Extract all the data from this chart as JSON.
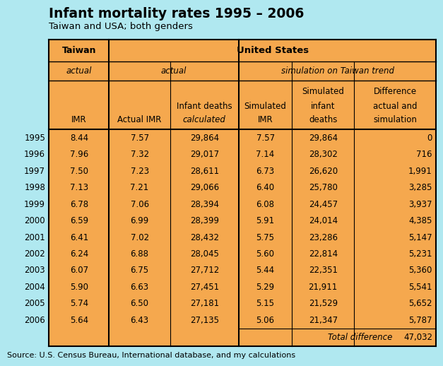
{
  "title": "Infant mortality rates 1995 – 2006",
  "subtitle": "Taiwan and USA; both genders",
  "source": "Source: U.S. Census Bureau, International database, and my calculations",
  "bg_color": "#b0e8f0",
  "table_bg": "#f5a84e",
  "years": [
    "1995",
    "1996",
    "1997",
    "1998",
    "1999",
    "2000",
    "2001",
    "2002",
    "2003",
    "2004",
    "2005",
    "2006"
  ],
  "taiwan_imr": [
    "8.44",
    "7.96",
    "7.50",
    "7.13",
    "6.78",
    "6.59",
    "6.41",
    "6.24",
    "6.07",
    "5.90",
    "5.74",
    "5.64"
  ],
  "us_actual_imr": [
    "7.57",
    "7.32",
    "7.23",
    "7.21",
    "7.06",
    "6.99",
    "7.02",
    "6.88",
    "6.75",
    "6.63",
    "6.50",
    "6.43"
  ],
  "us_infant_deaths": [
    "29,864",
    "29,017",
    "28,611",
    "29,066",
    "28,394",
    "28,399",
    "28,432",
    "28,045",
    "27,712",
    "27,451",
    "27,181",
    "27,135"
  ],
  "sim_imr": [
    "7.57",
    "7.14",
    "6.73",
    "6.40",
    "6.08",
    "5.91",
    "5.75",
    "5.60",
    "5.44",
    "5.29",
    "5.15",
    "5.06"
  ],
  "sim_infant_deaths": [
    "29,864",
    "28,302",
    "26,620",
    "25,780",
    "24,457",
    "24,014",
    "23,286",
    "22,814",
    "22,351",
    "21,911",
    "21,529",
    "21,347"
  ],
  "difference": [
    "0",
    "716",
    "1,991",
    "3,285",
    "3,937",
    "4,385",
    "5,147",
    "5,231",
    "5,360",
    "5,541",
    "5,652",
    "5,787"
  ],
  "total_difference": "47,032"
}
